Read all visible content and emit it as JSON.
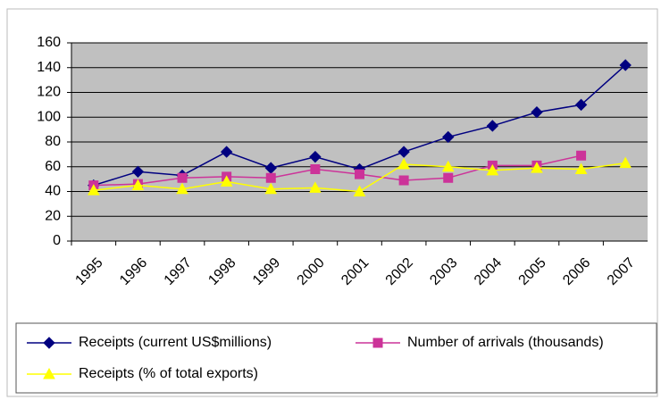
{
  "chart_data": {
    "type": "line",
    "categories": [
      "1995",
      "1996",
      "1997",
      "1998",
      "1999",
      "2000",
      "2001",
      "2002",
      "2003",
      "2004",
      "2005",
      "2006",
      "2007"
    ],
    "series": [
      {
        "name": "Receipts (current US$millions)",
        "color": "#000080",
        "marker": "diamond",
        "values": [
          45,
          56,
          53,
          72,
          59,
          68,
          58,
          72,
          84,
          93,
          104,
          110,
          142
        ]
      },
      {
        "name": "Number of arrivals (thousands)",
        "color": "#cc3399",
        "marker": "square",
        "values": [
          45,
          46,
          51,
          52,
          51,
          58,
          54,
          49,
          51,
          61,
          61,
          69,
          null
        ]
      },
      {
        "name": "Receipts (% of total exports)",
        "color": "#ffff00",
        "marker": "triangle",
        "values": [
          41,
          45,
          42,
          48,
          42,
          43,
          40,
          62,
          60,
          57,
          59,
          58,
          63
        ]
      }
    ],
    "ylim": [
      0,
      160
    ],
    "yticks": [
      0,
      20,
      40,
      60,
      80,
      100,
      120,
      140,
      160
    ],
    "grid": true,
    "legend": "bottom"
  }
}
